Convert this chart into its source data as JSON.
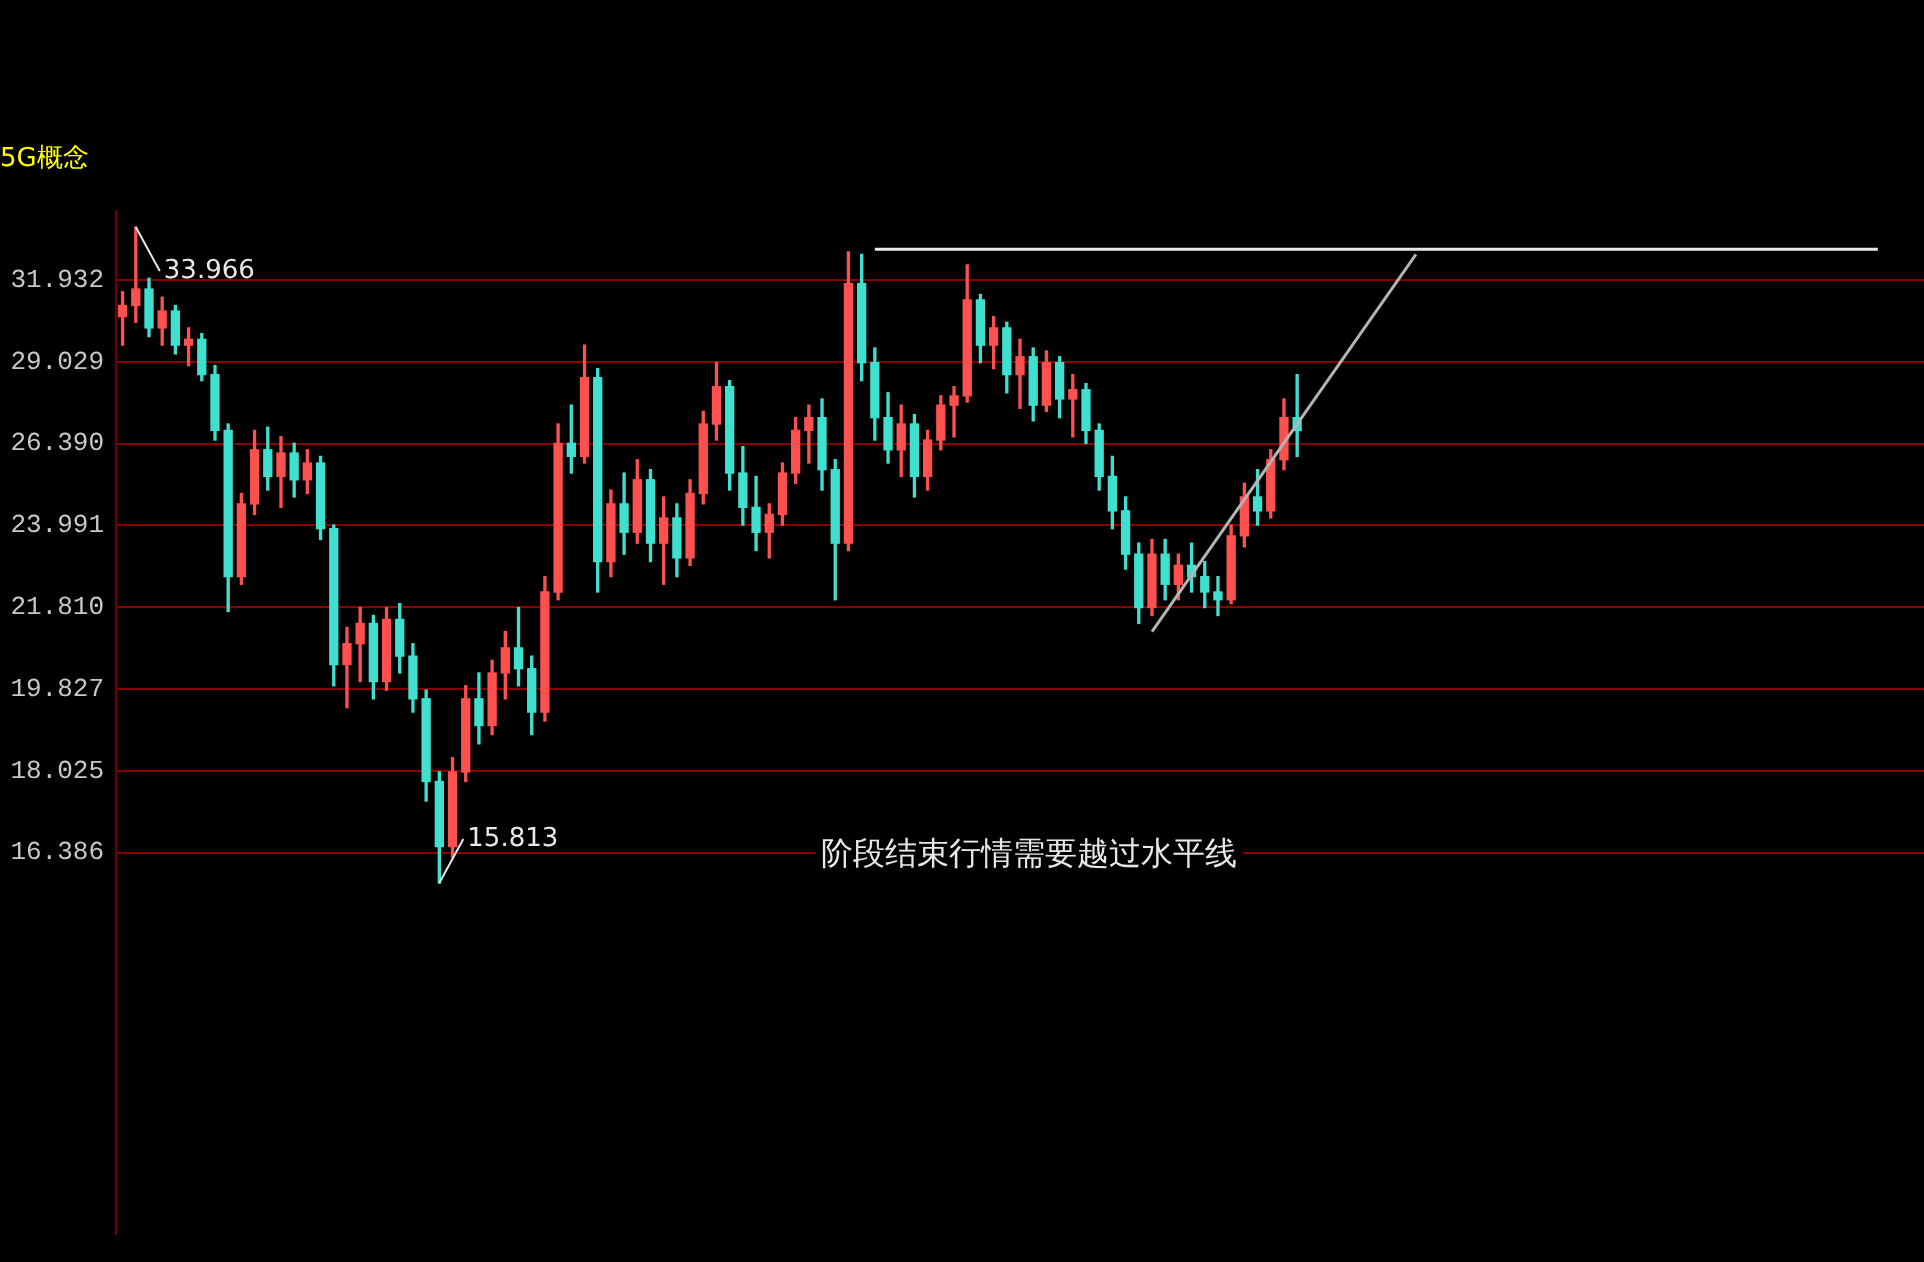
{
  "chart_data": {
    "type": "candlestick",
    "title": "5G概念",
    "categories": [
      null,
      null,
      null,
      null,
      null,
      null,
      null,
      null,
      null,
      null,
      null,
      null,
      null,
      null,
      null,
      null,
      null,
      null,
      null,
      null,
      null,
      null,
      null,
      null,
      null,
      null,
      null,
      null,
      null,
      null,
      null,
      null,
      null,
      null,
      null,
      null,
      null,
      null,
      null,
      null,
      null,
      null,
      null,
      null,
      null,
      null,
      null,
      null,
      null,
      null,
      null,
      null,
      null,
      null,
      null,
      null,
      null,
      null,
      null,
      null,
      null,
      null,
      null,
      null,
      null,
      null,
      null,
      null,
      null,
      null,
      null,
      null,
      null,
      null,
      null,
      null,
      null,
      null,
      null,
      null,
      null,
      null,
      null,
      null,
      null,
      null,
      null,
      null,
      null,
      null,
      null,
      null,
      null,
      null,
      null,
      null,
      null,
      null,
      null,
      null,
      null,
      null,
      null,
      null,
      null,
      null,
      null,
      null,
      null,
      null,
      null,
      null,
      null,
      null,
      null,
      null,
      null,
      null,
      null,
      null,
      null,
      null,
      null,
      null,
      null,
      null,
      null,
      null,
      null,
      null,
      null,
      null,
      null,
      null,
      null,
      null,
      null
    ],
    "ohlc": [
      [
        30.6,
        31.5,
        29.6,
        31.0
      ],
      [
        31.0,
        33.966,
        30.4,
        31.6
      ],
      [
        31.6,
        32.0,
        29.9,
        30.2
      ],
      [
        30.2,
        31.3,
        29.6,
        30.8
      ],
      [
        30.8,
        31.0,
        29.3,
        29.6
      ],
      [
        29.6,
        30.2,
        28.9,
        29.8
      ],
      [
        29.8,
        30.0,
        28.4,
        28.6
      ],
      [
        28.6,
        28.9,
        26.5,
        26.8
      ],
      [
        26.8,
        27.0,
        21.7,
        22.6
      ],
      [
        22.6,
        24.9,
        22.4,
        24.6
      ],
      [
        24.6,
        26.8,
        24.3,
        26.2
      ],
      [
        26.2,
        26.9,
        25.0,
        25.4
      ],
      [
        25.4,
        26.6,
        24.5,
        26.1
      ],
      [
        26.1,
        26.4,
        24.8,
        25.3
      ],
      [
        25.3,
        26.2,
        24.9,
        25.8
      ],
      [
        25.8,
        26.0,
        23.6,
        23.9
      ],
      [
        23.9,
        24.0,
        19.9,
        20.4
      ],
      [
        20.4,
        21.3,
        19.4,
        20.9
      ],
      [
        20.9,
        21.8,
        20.0,
        21.4
      ],
      [
        21.4,
        21.6,
        19.6,
        20.0
      ],
      [
        20.0,
        21.8,
        19.8,
        21.5
      ],
      [
        21.5,
        21.9,
        20.2,
        20.6
      ],
      [
        20.6,
        20.9,
        19.3,
        19.6
      ],
      [
        19.6,
        19.8,
        17.4,
        17.8
      ],
      [
        17.8,
        18.0,
        15.813,
        16.5
      ],
      [
        16.5,
        18.3,
        16.3,
        18.0
      ],
      [
        18.0,
        19.9,
        17.8,
        19.6
      ],
      [
        19.6,
        20.2,
        18.6,
        19.0
      ],
      [
        19.0,
        20.5,
        18.8,
        20.2
      ],
      [
        20.2,
        21.2,
        19.6,
        20.8
      ],
      [
        20.8,
        21.8,
        19.9,
        20.3
      ],
      [
        20.3,
        20.6,
        18.8,
        19.3
      ],
      [
        19.3,
        22.6,
        19.1,
        22.2
      ],
      [
        22.2,
        27.0,
        22.0,
        26.4
      ],
      [
        26.4,
        27.6,
        25.5,
        26.0
      ],
      [
        26.0,
        29.6,
        25.8,
        28.5
      ],
      [
        28.5,
        28.8,
        22.2,
        23.0
      ],
      [
        23.0,
        25.0,
        22.6,
        24.6
      ],
      [
        24.6,
        25.5,
        23.2,
        23.8
      ],
      [
        23.8,
        25.9,
        23.5,
        25.3
      ],
      [
        25.3,
        25.6,
        23.0,
        23.5
      ],
      [
        23.5,
        24.8,
        22.4,
        24.2
      ],
      [
        24.2,
        24.6,
        22.6,
        23.1
      ],
      [
        23.1,
        25.3,
        22.9,
        24.9
      ],
      [
        24.9,
        27.4,
        24.6,
        27.0
      ],
      [
        27.0,
        29.0,
        26.5,
        28.2
      ],
      [
        28.2,
        28.4,
        25.0,
        25.5
      ],
      [
        25.5,
        26.3,
        24.0,
        24.5
      ],
      [
        24.5,
        25.4,
        23.3,
        23.8
      ],
      [
        23.8,
        24.6,
        23.1,
        24.3
      ],
      [
        24.3,
        25.8,
        24.0,
        25.5
      ],
      [
        25.5,
        27.2,
        25.2,
        26.8
      ],
      [
        26.8,
        27.6,
        25.8,
        27.2
      ],
      [
        27.2,
        27.8,
        25.0,
        25.6
      ],
      [
        25.6,
        25.9,
        22.0,
        23.5
      ],
      [
        23.5,
        33.0,
        23.3,
        31.8
      ],
      [
        31.8,
        32.9,
        28.4,
        29.0
      ],
      [
        29.0,
        29.5,
        26.5,
        27.2
      ],
      [
        27.2,
        28.0,
        25.8,
        26.2
      ],
      [
        26.2,
        27.6,
        25.4,
        27.0
      ],
      [
        27.0,
        27.3,
        24.8,
        25.4
      ],
      [
        25.4,
        26.8,
        25.0,
        26.5
      ],
      [
        26.5,
        27.9,
        26.2,
        27.6
      ],
      [
        27.6,
        28.2,
        26.6,
        27.9
      ],
      [
        27.9,
        32.5,
        27.7,
        31.2
      ],
      [
        31.2,
        31.4,
        29.0,
        29.6
      ],
      [
        29.6,
        30.6,
        28.8,
        30.2
      ],
      [
        30.2,
        30.4,
        28.0,
        28.6
      ],
      [
        28.6,
        29.8,
        27.5,
        29.2
      ],
      [
        29.2,
        29.5,
        27.1,
        27.6
      ],
      [
        27.6,
        29.4,
        27.4,
        29.0
      ],
      [
        29.0,
        29.2,
        27.2,
        27.8
      ],
      [
        27.8,
        28.6,
        26.6,
        28.1
      ],
      [
        28.1,
        28.3,
        26.4,
        26.8
      ],
      [
        26.8,
        27.0,
        25.0,
        25.4
      ],
      [
        25.4,
        26.0,
        23.9,
        24.4
      ],
      [
        24.4,
        24.8,
        22.8,
        23.2
      ],
      [
        23.2,
        23.5,
        21.4,
        21.8
      ],
      [
        21.8,
        23.6,
        21.6,
        23.2
      ],
      [
        23.2,
        23.6,
        22.0,
        22.4
      ],
      [
        22.4,
        23.2,
        22.0,
        22.9
      ],
      [
        22.9,
        23.5,
        22.2,
        22.6
      ],
      [
        22.6,
        23.0,
        21.8,
        22.2
      ],
      [
        22.2,
        22.6,
        21.6,
        22.0
      ],
      [
        22.0,
        24.0,
        21.9,
        23.7
      ],
      [
        23.7,
        25.2,
        23.4,
        24.8
      ],
      [
        24.8,
        25.6,
        24.0,
        24.4
      ],
      [
        24.4,
        26.2,
        24.2,
        25.9
      ],
      [
        25.9,
        27.8,
        25.6,
        27.2
      ],
      [
        27.2,
        28.6,
        26.0,
        26.8
      ],
      null,
      null,
      null,
      null,
      null,
      null,
      null,
      null,
      null,
      null,
      null,
      null,
      null,
      null,
      null,
      null,
      null,
      null,
      null,
      null,
      null,
      null,
      null,
      null,
      null,
      null,
      null,
      null,
      null,
      null,
      null,
      null,
      null,
      null,
      null,
      null,
      null,
      null,
      null,
      null,
      null,
      null,
      null,
      null,
      null,
      null,
      null
    ],
    "colors": [
      "#ff5050",
      "#ff5050",
      "#3fe0d0",
      "#ff5050",
      "#3fe0d0",
      "#ff5050",
      "#3fe0d0",
      "#3fe0d0",
      "#3fe0d0",
      "#ff5050",
      "#ff5050",
      "#3fe0d0",
      "#ff5050",
      "#3fe0d0",
      "#ff5050",
      "#3fe0d0",
      "#3fe0d0",
      "#ff5050",
      "#ff5050",
      "#3fe0d0",
      "#ff5050",
      "#3fe0d0",
      "#3fe0d0",
      "#3fe0d0",
      "#3fe0d0",
      "#ff5050",
      "#ff5050",
      "#3fe0d0",
      "#ff5050",
      "#ff5050",
      "#3fe0d0",
      "#3fe0d0",
      "#ff5050",
      "#ff5050",
      "#3fe0d0",
      "#ff5050",
      "#3fe0d0",
      "#ff5050",
      "#3fe0d0",
      "#ff5050",
      "#3fe0d0",
      "#ff5050",
      "#3fe0d0",
      "#ff5050",
      "#ff5050",
      "#ff5050",
      "#3fe0d0",
      "#3fe0d0",
      "#3fe0d0",
      "#ff5050",
      "#ff5050",
      "#ff5050",
      "#ff5050",
      "#3fe0d0",
      "#3fe0d0",
      "#ff5050",
      "#3fe0d0",
      "#3fe0d0",
      "#3fe0d0",
      "#ff5050",
      "#3fe0d0",
      "#ff5050",
      "#ff5050",
      "#ff5050",
      "#ff5050",
      "#3fe0d0",
      "#ff5050",
      "#3fe0d0",
      "#ff5050",
      "#3fe0d0",
      "#ff5050",
      "#3fe0d0",
      "#ff5050",
      "#3fe0d0",
      "#3fe0d0",
      "#3fe0d0",
      "#3fe0d0",
      "#3fe0d0",
      "#ff5050",
      "#3fe0d0",
      "#ff5050",
      "#3fe0d0",
      "#3fe0d0",
      "#3fe0d0",
      "#ff5050",
      "#ff5050",
      "#3fe0d0",
      "#ff5050",
      "#ff5050",
      "#3fe0d0",
      null,
      null,
      null,
      null,
      null,
      null,
      null,
      null,
      null,
      null,
      null,
      null,
      null,
      null,
      null,
      null,
      null,
      null,
      null,
      null,
      null,
      null,
      null,
      null,
      null,
      null,
      null,
      null,
      null,
      null,
      null,
      null,
      null,
      null,
      null,
      null,
      null,
      null,
      null,
      null,
      null,
      null,
      null,
      null,
      null,
      null,
      null
    ],
    "series": [
      {
        "type": "line",
        "color": "#e8e8e8",
        "values": [
          null,
          null,
          null,
          null,
          null,
          null,
          null,
          null,
          null,
          null,
          null,
          null,
          null,
          null,
          null,
          null,
          null,
          null,
          null,
          null,
          null,
          null,
          null,
          null,
          null,
          null,
          null,
          null,
          null,
          null,
          null,
          null,
          null,
          null,
          null,
          null,
          null,
          null,
          null,
          null,
          null,
          null,
          null,
          null,
          null,
          null,
          null,
          null,
          null,
          null,
          null,
          null,
          null,
          null,
          null,
          null,
          null,
          33.1,
          null,
          null,
          null,
          null,
          null,
          null,
          null,
          null,
          null,
          null,
          null,
          null,
          null,
          null,
          null,
          null,
          null,
          null,
          null,
          null,
          null,
          null,
          null,
          null,
          null,
          null,
          null,
          null,
          null,
          null,
          null,
          null,
          null,
          null,
          null,
          null,
          null,
          null,
          null,
          null,
          null,
          null,
          null,
          null,
          null,
          null,
          null,
          null,
          null,
          null,
          null,
          null,
          null,
          null,
          null,
          null,
          null,
          null,
          null,
          null,
          null,
          null,
          null,
          null,
          null,
          null,
          null,
          null,
          null,
          null,
          null,
          null,
          null,
          null,
          null,
          33.1,
          null,
          null,
          null
        ]
      },
      {
        "type": "line",
        "color": "#b4b4b4",
        "values": [
          null,
          null,
          null,
          null,
          null,
          null,
          null,
          null,
          null,
          null,
          null,
          null,
          null,
          null,
          null,
          null,
          null,
          null,
          null,
          null,
          null,
          null,
          null,
          null,
          null,
          null,
          null,
          null,
          null,
          null,
          null,
          null,
          null,
          null,
          null,
          null,
          null,
          null,
          null,
          null,
          null,
          null,
          null,
          null,
          null,
          null,
          null,
          null,
          null,
          null,
          null,
          null,
          null,
          null,
          null,
          null,
          null,
          null,
          null,
          null,
          null,
          null,
          null,
          null,
          null,
          null,
          null,
          null,
          null,
          null,
          null,
          null,
          null,
          null,
          null,
          null,
          null,
          null,
          21.2,
          null,
          null,
          null,
          null,
          null,
          null,
          null,
          null,
          null,
          null,
          null,
          null,
          null,
          null,
          null,
          null,
          null,
          null,
          null,
          32.9,
          null,
          null,
          null,
          null,
          null,
          null,
          null,
          null,
          null,
          null,
          null,
          null,
          null,
          null,
          null,
          null,
          null,
          null,
          null,
          null,
          null,
          null,
          null,
          null,
          null,
          null,
          null,
          null,
          null,
          null,
          null,
          null,
          null,
          null,
          null,
          null,
          null,
          null
        ]
      }
    ],
    "log": "y",
    "ylim": [
      10.5,
      34.6
    ],
    "yticks": [
      16.386,
      18.025,
      19.827,
      {
        "value": 21.81,
        "label": "21.810"
      },
      23.991,
      {
        "value": 26.39,
        "label": "26.390"
      },
      29.029,
      31.932
    ],
    "grid": "y",
    "tick_labels": "y",
    "legend": false,
    "annotations": [
      "33.966",
      "15.813",
      "阶段结束行情需要越过水平线"
    ]
  }
}
